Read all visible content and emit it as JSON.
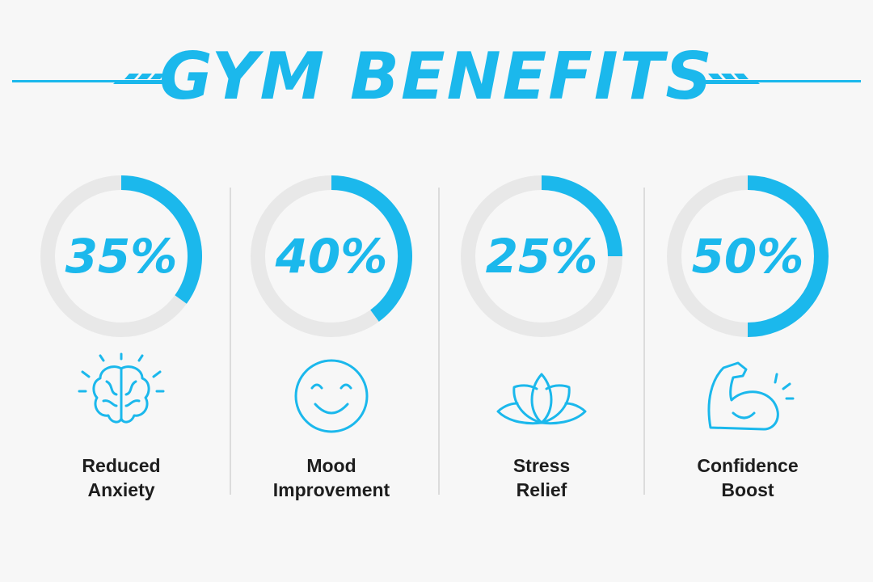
{
  "header": {
    "title": "GYM BENEFITS"
  },
  "items": [
    {
      "value": 35,
      "value_label": "35%",
      "label": [
        "Reduced",
        "Anxiety"
      ]
    },
    {
      "value": 40,
      "value_label": "40%",
      "label": [
        "Mood",
        "Improvement"
      ]
    },
    {
      "value": 25,
      "value_label": "25%",
      "label": [
        "Stress",
        "Relief"
      ]
    },
    {
      "value": 50,
      "value_label": "50%",
      "label": [
        "Confidence",
        "Boost"
      ]
    }
  ]
}
